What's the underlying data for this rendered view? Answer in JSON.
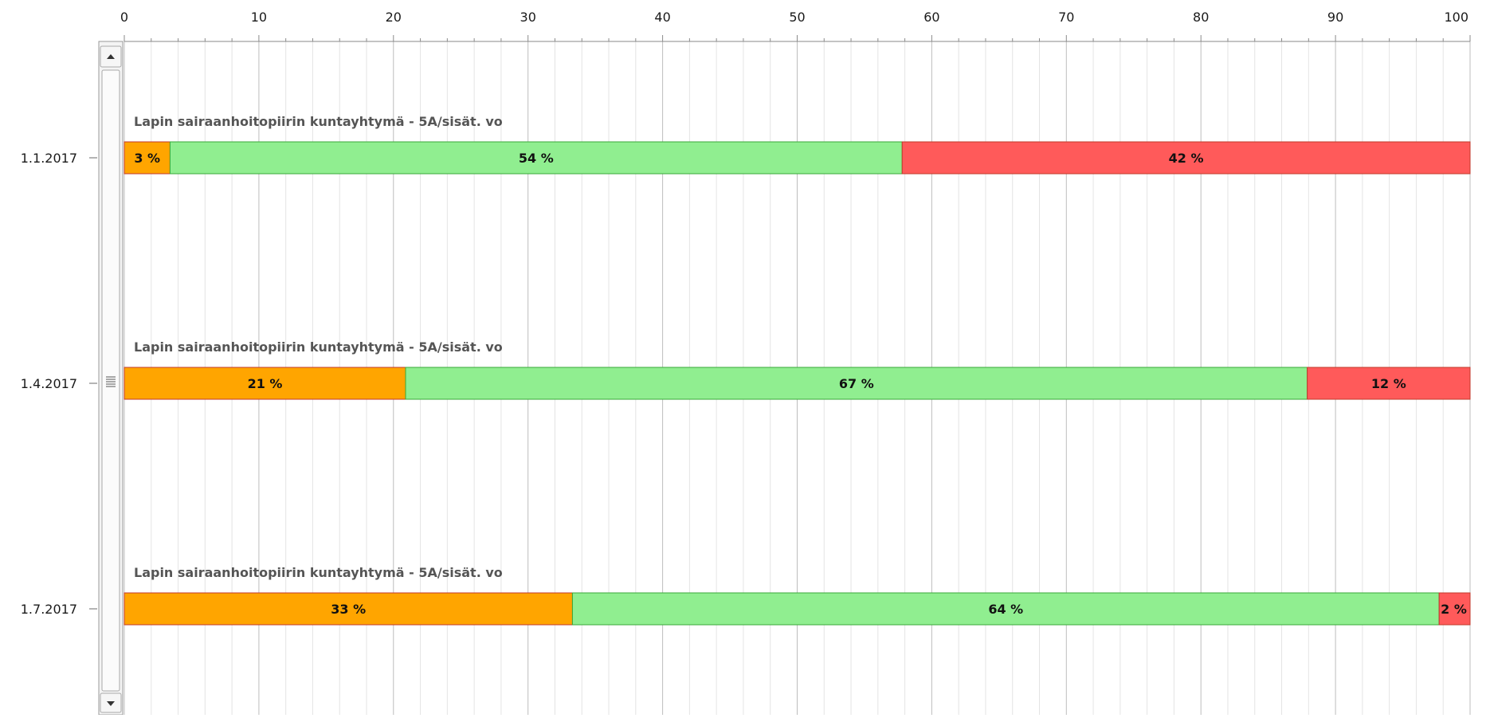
{
  "chart_data": {
    "type": "bar",
    "orientation": "horizontal",
    "stacked": true,
    "normalized_to_100": true,
    "xlim": [
      0,
      100
    ],
    "x_ticks": [
      "0",
      "10",
      "20",
      "30",
      "40",
      "50",
      "60",
      "70",
      "80",
      "90",
      "100"
    ],
    "x_axis_position": "top",
    "grid": true,
    "legend": "none",
    "categories": [
      "1.1.2017",
      "1.4.2017",
      "1.7.2017"
    ],
    "bar_titles": [
      "Lapin sairaanhoitopiirin kuntayhtymä - 5A/sisät. vo",
      "Lapin sairaanhoitopiirin kuntayhtymä - 5A/sisät. vo",
      "Lapin sairaanhoitopiirin kuntayhtymä - 5A/sisät. vo"
    ],
    "series": [
      {
        "color": "#ffa500",
        "values": [
          3.4,
          20.9,
          33.3
        ],
        "labels": [
          "3 %",
          "21 %",
          "33 %"
        ]
      },
      {
        "color": "#90ee90",
        "values": [
          54.4,
          67.0,
          64.4
        ],
        "labels": [
          "54 %",
          "67 %",
          "64 %"
        ]
      },
      {
        "color": "#ff5a5a",
        "values": [
          42.2,
          12.1,
          2.3
        ],
        "labels": [
          "42 %",
          "12 %",
          "2 %"
        ]
      }
    ]
  },
  "scrollbar": {
    "up_icon": "scroll-up-arrow-icon",
    "down_icon": "scroll-down-arrow-icon",
    "thumb_grip_icon": "scroll-thumb-grip-icon"
  }
}
